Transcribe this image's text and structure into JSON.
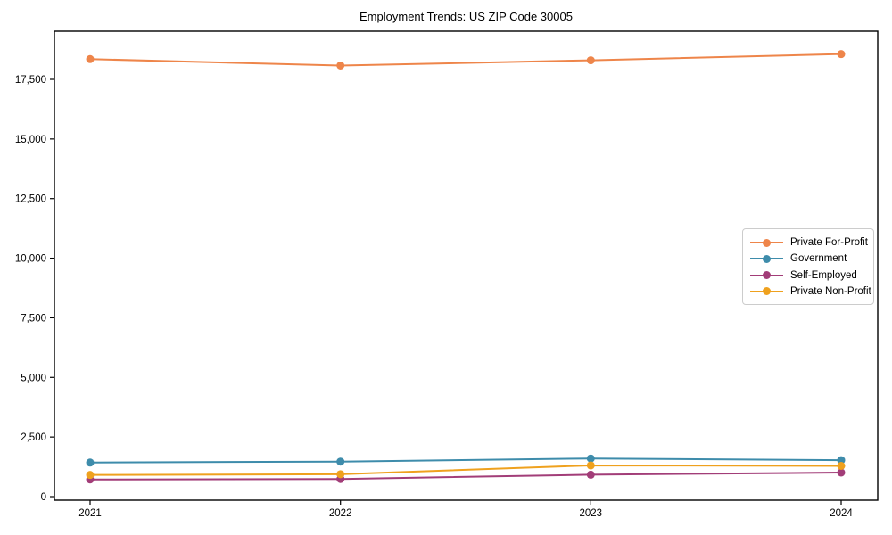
{
  "figure": {
    "title": "Employment Trends: US ZIP Code 30005"
  },
  "chart_data": {
    "type": "line",
    "title": "Employment Trends: US ZIP Code 30005",
    "xlabel": "",
    "ylabel": "",
    "x": [
      2021,
      2022,
      2023,
      2024
    ],
    "xtick_labels": [
      "2021",
      "2022",
      "2023",
      "2024"
    ],
    "yticks": [
      0,
      2500,
      5000,
      7500,
      10000,
      12500,
      15000,
      17500
    ],
    "ytick_labels": [
      "0",
      "2,500",
      "5,000",
      "7,500",
      "10,000",
      "12,500",
      "15,000",
      "17,500"
    ],
    "ylim": [
      -220,
      19500
    ],
    "grid": false,
    "legend_position": "center-right",
    "marker": "circle",
    "series": [
      {
        "name": "Private For-Profit",
        "color": "#ee854a",
        "values": [
          18350,
          18080,
          18300,
          18560
        ]
      },
      {
        "name": "Government",
        "color": "#3e8cab",
        "values": [
          1430,
          1470,
          1600,
          1530
        ]
      },
      {
        "name": "Self-Employed",
        "color": "#a23d78",
        "values": [
          720,
          740,
          920,
          1010
        ]
      },
      {
        "name": "Private Non-Profit",
        "color": "#efa11e",
        "values": [
          910,
          940,
          1310,
          1290
        ]
      }
    ]
  }
}
